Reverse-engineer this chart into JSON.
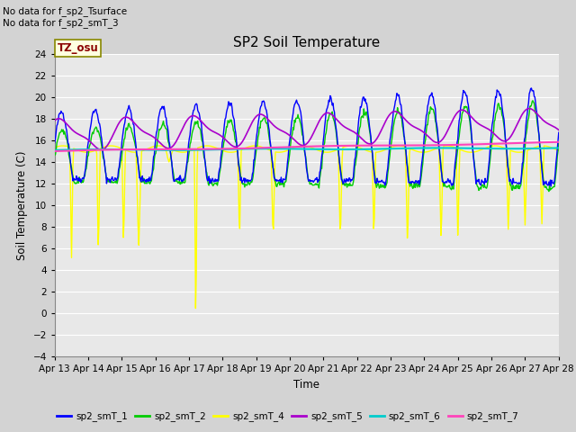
{
  "title": "SP2 Soil Temperature",
  "ylabel": "Soil Temperature (C)",
  "xlabel": "Time",
  "no_data_text": [
    "No data for f_sp2_Tsurface",
    "No data for f_sp2_smT_3"
  ],
  "tz_label": "TZ_osu",
  "x_tick_labels": [
    "Apr 13",
    "Apr 14",
    "Apr 15",
    "Apr 16",
    "Apr 17",
    "Apr 18",
    "Apr 19",
    "Apr 20",
    "Apr 21",
    "Apr 22",
    "Apr 23",
    "Apr 24",
    "Apr 25",
    "Apr 26",
    "Apr 27",
    "Apr 28"
  ],
  "ylim": [
    -4,
    24
  ],
  "yticks": [
    -4,
    -2,
    0,
    2,
    4,
    6,
    8,
    10,
    12,
    14,
    16,
    18,
    20,
    22,
    24
  ],
  "bg_color": "#d3d3d3",
  "plot_bg_color": "#e8e8e8",
  "grid_color": "#ffffff",
  "legend_items": [
    {
      "label": "sp2_smT_1",
      "color": "#0000ff"
    },
    {
      "label": "sp2_smT_2",
      "color": "#00cc00"
    },
    {
      "label": "sp2_smT_4",
      "color": "#ffff00"
    },
    {
      "label": "sp2_smT_5",
      "color": "#aa00cc"
    },
    {
      "label": "sp2_smT_6",
      "color": "#00cccc"
    },
    {
      "label": "sp2_smT_7",
      "color": "#ff44bb"
    }
  ],
  "colors": {
    "sp2_smT_1": "#0000ff",
    "sp2_smT_2": "#00cc00",
    "sp2_smT_4": "#ffff00",
    "sp2_smT_5": "#aa00cc",
    "sp2_smT_6": "#00cccc",
    "sp2_smT_7": "#ff44bb"
  }
}
